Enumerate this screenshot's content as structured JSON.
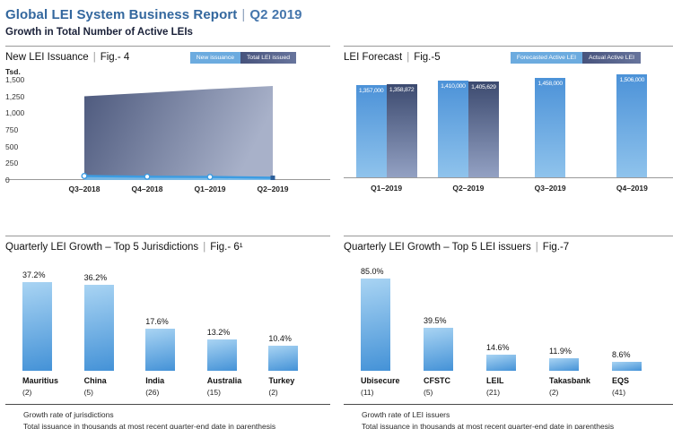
{
  "page": {
    "title_main": "Global LEI System Business Report",
    "title_sep": "|",
    "title_period": "Q2 2019",
    "subtitle": "Growth in Total Number of Active LEIs"
  },
  "colors": {
    "title_blue": "#33679e",
    "subtitle_navy": "#1a2139",
    "light_blue": "#61a7e1",
    "dark_navy": "#47537c",
    "bottom_bar_top": "#a9d4f3",
    "bottom_bar_bottom": "#4492d7"
  },
  "chart_data": [
    {
      "id": "new_lei_issuance",
      "type": "area",
      "title": "New LEI Issuance",
      "sep": "|",
      "fig": "Fig.- 4",
      "unit_label": "Tsd.",
      "legend": [
        {
          "label": "New issuance",
          "color": "#6cabdf"
        },
        {
          "label": "Total LEI issued",
          "color": "#47537c"
        }
      ],
      "y_ticks": [
        "1,500",
        "1,250",
        "1,000",
        "750",
        "500",
        "250",
        "0"
      ],
      "ylim": [
        0,
        1500
      ],
      "categories": [
        "Q3–2018",
        "Q4–2018",
        "Q1–2019",
        "Q2–2019"
      ],
      "series": [
        {
          "name": "Total LEI issued",
          "values": [
            1252,
            1305,
            1359,
            1406
          ]
        },
        {
          "name": "New issuance",
          "values": [
            60,
            50,
            45,
            33
          ]
        }
      ],
      "grid": false,
      "legend_position": "top-right"
    },
    {
      "id": "lei_forecast",
      "type": "bar",
      "title": "LEI Forecast",
      "sep": "|",
      "fig": "Fig.-5",
      "legend": [
        {
          "label": "Forecasted Active LEI",
          "color": "#6cabdf"
        },
        {
          "label": "Actual Active LEI",
          "color": "#47537c"
        }
      ],
      "categories": [
        "Q1–2019",
        "Q2–2019",
        "Q3–2019",
        "Q4–2019"
      ],
      "series": [
        {
          "name": "Forecasted Active LEI",
          "values": [
            1357000,
            1410000,
            1458000,
            1506000
          ],
          "labels": [
            "1,357,000",
            "1,410,000",
            "1,458,000",
            "1,506,000"
          ]
        },
        {
          "name": "Actual Active LEI",
          "values": [
            1358872,
            1405629,
            null,
            null
          ],
          "labels": [
            "1,358,872",
            "1,405,629",
            null,
            null
          ]
        }
      ],
      "ylim": [
        0,
        1560000
      ],
      "grid": false,
      "legend_position": "top-right"
    },
    {
      "id": "quarterly_growth_jurisdictions",
      "type": "bar",
      "title": "Quarterly LEI Growth – Top 5 Jurisdictions",
      "sep": "|",
      "fig": "Fig.- 6¹",
      "categories": [
        "Mauritius",
        "China",
        "India",
        "Australia",
        "Turkey"
      ],
      "counts": [
        "(2)",
        "(5)",
        "(26)",
        "(15)",
        "(2)"
      ],
      "values": [
        37.2,
        36.2,
        17.6,
        13.2,
        10.4
      ],
      "value_labels": [
        "37.2%",
        "36.2%",
        "17.6%",
        "13.2%",
        "10.4%"
      ],
      "ylim": [
        0,
        42
      ],
      "footnotes": [
        "Growth rate of jurisdictions",
        "Total issuance in thousands at most recent quarter-end date in parenthesis"
      ]
    },
    {
      "id": "quarterly_growth_issuers",
      "type": "bar",
      "title": "Quarterly LEI Growth – Top 5 LEI issuers",
      "sep": "|",
      "fig": "Fig.-7",
      "categories": [
        "Ubisecure",
        "CFSTC",
        "LEIL",
        "Takasbank",
        "EQS"
      ],
      "counts": [
        "(11)",
        "(5)",
        "(21)",
        "(2)",
        "(41)"
      ],
      "values": [
        85.0,
        39.5,
        14.6,
        11.9,
        8.6
      ],
      "value_labels": [
        "85.0%",
        "39.5%",
        "14.6%",
        "11.9%",
        "8.6%"
      ],
      "ylim": [
        0,
        92
      ],
      "footnotes": [
        "Growth rate of LEI issuers",
        "Total issuance in thousands at most recent quarter-end date in parenthesis"
      ]
    }
  ]
}
